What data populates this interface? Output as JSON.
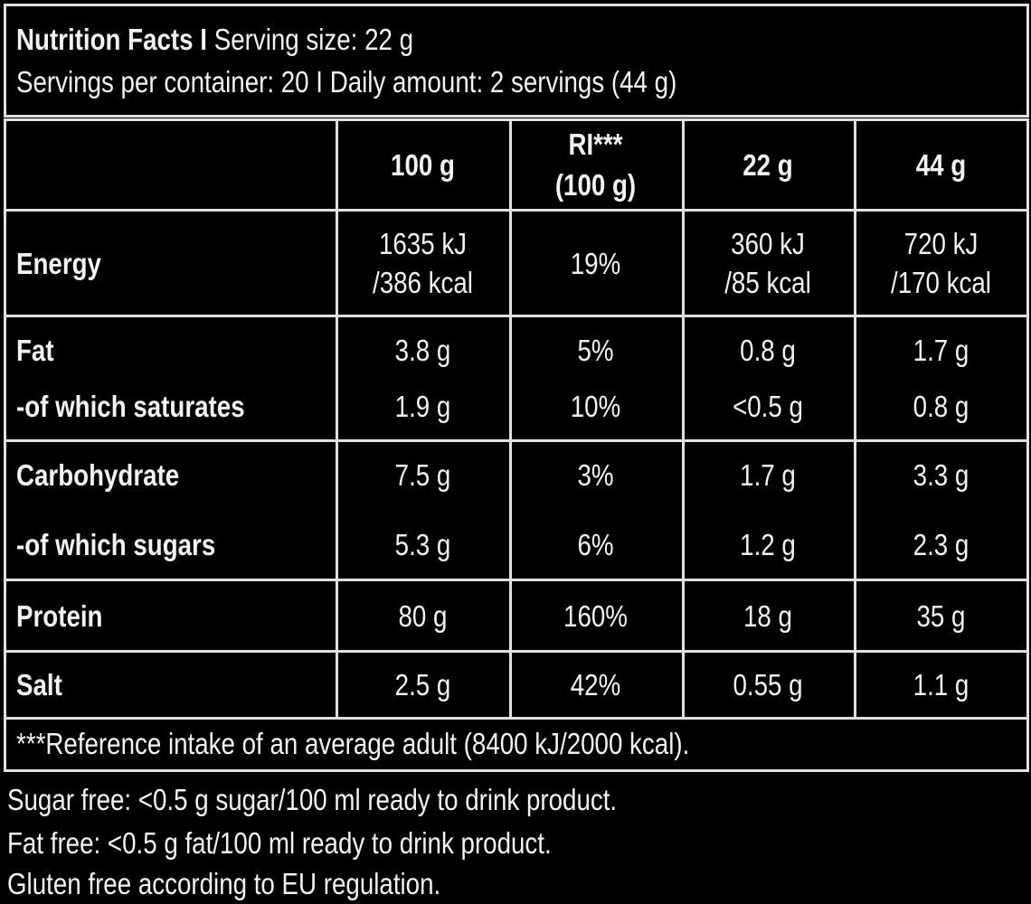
{
  "header": {
    "title": "Nutrition Facts I",
    "serving_size": "Serving size: 22 g",
    "servings_line": "Servings per container: 20 I Daily amount: 2 servings (44 g)"
  },
  "columns": [
    "100 g",
    "RI***",
    "(100 g)",
    "22 g",
    "44 g"
  ],
  "rows": {
    "energy": {
      "label": "Energy",
      "v100": [
        "1635 kJ",
        "/386 kcal"
      ],
      "ri": "19%",
      "v22": [
        "360 kJ",
        "/85 kcal"
      ],
      "v44": [
        "720 kJ",
        "/170 kcal"
      ]
    },
    "fat": {
      "label": "Fat",
      "v100": "3.8 g",
      "ri": "5%",
      "v22": "0.8 g",
      "v44": "1.7 g"
    },
    "saturates": {
      "label": "-of which saturates",
      "v100": "1.9 g",
      "ri": "10%",
      "v22": "<0.5 g",
      "v44": "0.8 g"
    },
    "carbohydrate": {
      "label": "Carbohydrate",
      "v100": "7.5 g",
      "ri": "3%",
      "v22": "1.7 g",
      "v44": "3.3 g"
    },
    "sugars": {
      "label": "-of which sugars",
      "v100": "5.3 g",
      "ri": "6%",
      "v22": "1.2 g",
      "v44": "2.3 g"
    },
    "protein": {
      "label": "Protein",
      "v100": "80 g",
      "ri": "160%",
      "v22": "18 g",
      "v44": "35 g"
    },
    "salt": {
      "label": "Salt",
      "v100": "2.5 g",
      "ri": "42%",
      "v22": "0.55 g",
      "v44": "1.1 g"
    }
  },
  "footnote": "***Reference intake of an average adult (8400 kJ/2000 kcal).",
  "notes": [
    "Sugar free: <0.5 g sugar/100 ml ready to drink product.",
    "Fat free: <0.5 g fat/100 ml ready to drink product.",
    "Gluten free according to EU regulation."
  ]
}
